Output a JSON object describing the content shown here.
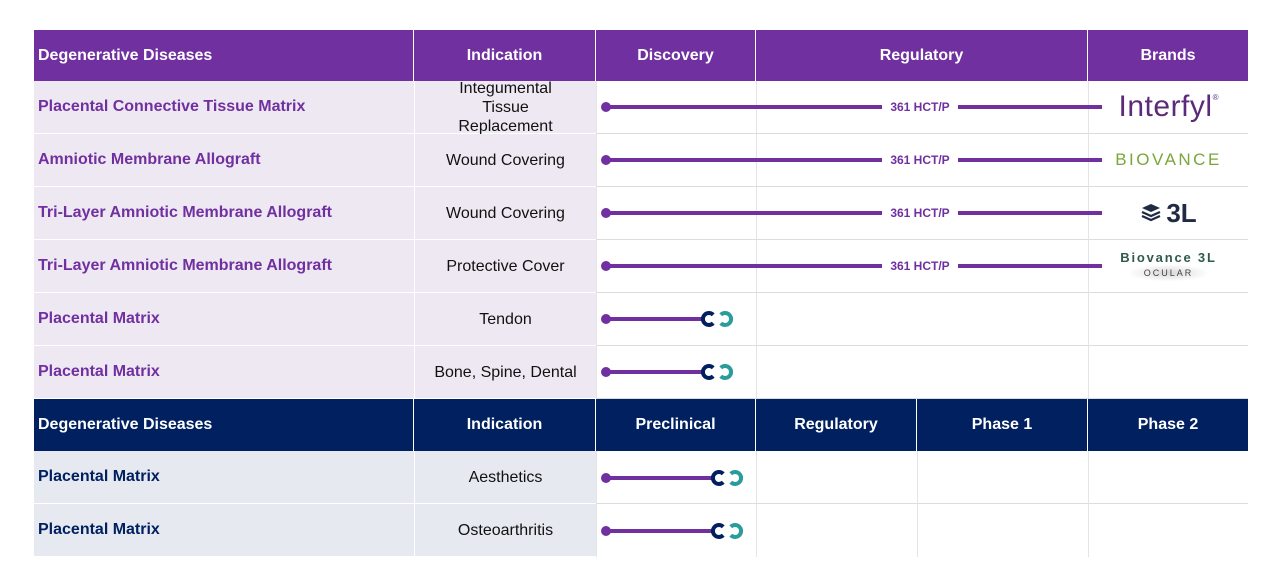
{
  "chart_data": {
    "type": "table",
    "sections": [
      {
        "header": [
          "Degenerative Diseases",
          "Indication",
          "Discovery",
          "Regulatory",
          "Brands"
        ],
        "rows": [
          {
            "name": "Placental Connective  Tissue Matrix",
            "indication": "Integumental  Tissue Replacement",
            "progress": "361 HCT/P",
            "brand": "Interfyl"
          },
          {
            "name": "Amniotic Membrane Allograft",
            "indication": "Wound Covering",
            "progress": "361 HCT/P",
            "brand": "BIOVANCE"
          },
          {
            "name": "Tri-Layer Amniotic Membrane Allograft",
            "indication": "Wound Covering",
            "progress": "361 HCT/P",
            "brand": "3L"
          },
          {
            "name": "Tri-Layer Amniotic Membrane Allograft",
            "indication": "Protective Cover",
            "progress": "361 HCT/P",
            "brand": "Biovance 3L OCULAR"
          },
          {
            "name": "Placental Matrix",
            "indication": "Tendon",
            "progress": "Discovery",
            "brand": ""
          },
          {
            "name": "Placental Matrix",
            "indication": "Bone, Spine, Dental",
            "progress": "Discovery",
            "brand": ""
          }
        ]
      },
      {
        "header": [
          "Degenerative Diseases",
          "Indication",
          "Preclinical",
          "Regulatory",
          "Phase 1",
          "Phase 2"
        ],
        "rows": [
          {
            "name": "Placental Matrix",
            "indication": "Aesthetics",
            "progress": "Preclinical"
          },
          {
            "name": "Placental Matrix",
            "indication": "Osteoarthritis",
            "progress": "Preclinical"
          }
        ]
      }
    ],
    "colors": {
      "purple": "#7030a0",
      "navy": "#002060",
      "teal": "#2a9d9a"
    }
  },
  "brands": {
    "interfyl": "Interfyl",
    "biovance": "BIOVANCE",
    "threel": "3L",
    "ocular_top": "Biovance 3L",
    "ocular_bottom": "OCULAR"
  },
  "bar_label": "361 HCT/P"
}
